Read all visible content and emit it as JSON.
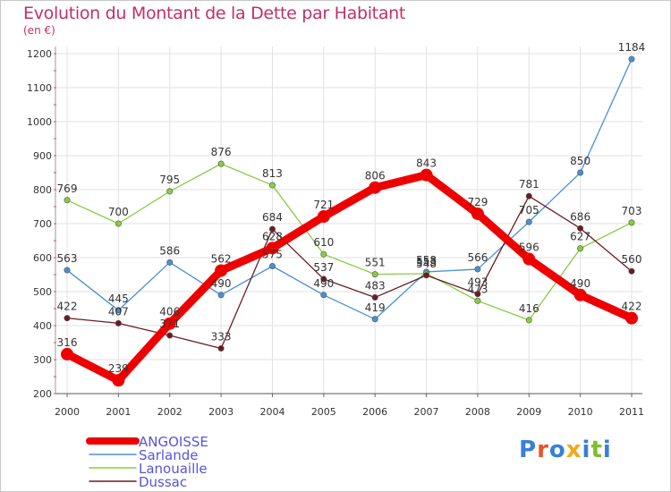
{
  "header": {
    "title": "Evolution du Montant de la Dette par Habitant",
    "unit": "(en €)"
  },
  "logo": {
    "letters": [
      "P",
      "r",
      "o",
      "x",
      "i",
      "t",
      "i"
    ],
    "colors": [
      "#3a7fd5",
      "#e8542a",
      "#3a7fd5",
      "#f2a81d",
      "#3a7fd5",
      "#7bbf2a",
      "#3a7fd5"
    ]
  },
  "chart_data": {
    "type": "line",
    "title": "Evolution du Montant de la Dette par Habitant",
    "ylabel": "(en €)",
    "xlabel": "",
    "x": [
      "2000",
      "2001",
      "2002",
      "2003",
      "2004",
      "2005",
      "2006",
      "2007",
      "2008",
      "2009",
      "2010",
      "2011"
    ],
    "ylim": [
      200,
      1200
    ],
    "yticks": [
      200,
      300,
      400,
      500,
      600,
      700,
      800,
      900,
      1000,
      1100,
      1200
    ],
    "grid": true,
    "legend_position": "bottom-left",
    "series": [
      {
        "name": "ANGOISSE",
        "color": "#ee0000",
        "values": [
          316,
          239,
          406,
          562,
          628,
          721,
          806,
          843,
          729,
          596,
          490,
          422
        ],
        "highlight": true
      },
      {
        "name": "Sarlande",
        "color": "#4a90d0",
        "values": [
          563,
          445,
          586,
          490,
          575,
          490,
          419,
          558,
          566,
          705,
          850,
          1184
        ]
      },
      {
        "name": "Lanouaille",
        "color": "#88cc44",
        "values": [
          769,
          700,
          795,
          876,
          813,
          610,
          551,
          553,
          473,
          416,
          627,
          703
        ]
      },
      {
        "name": "Dussac",
        "color": "#6b1a24",
        "values": [
          422,
          407,
          371,
          333,
          684,
          537,
          483,
          548,
          493,
          781,
          686,
          560
        ]
      }
    ]
  }
}
